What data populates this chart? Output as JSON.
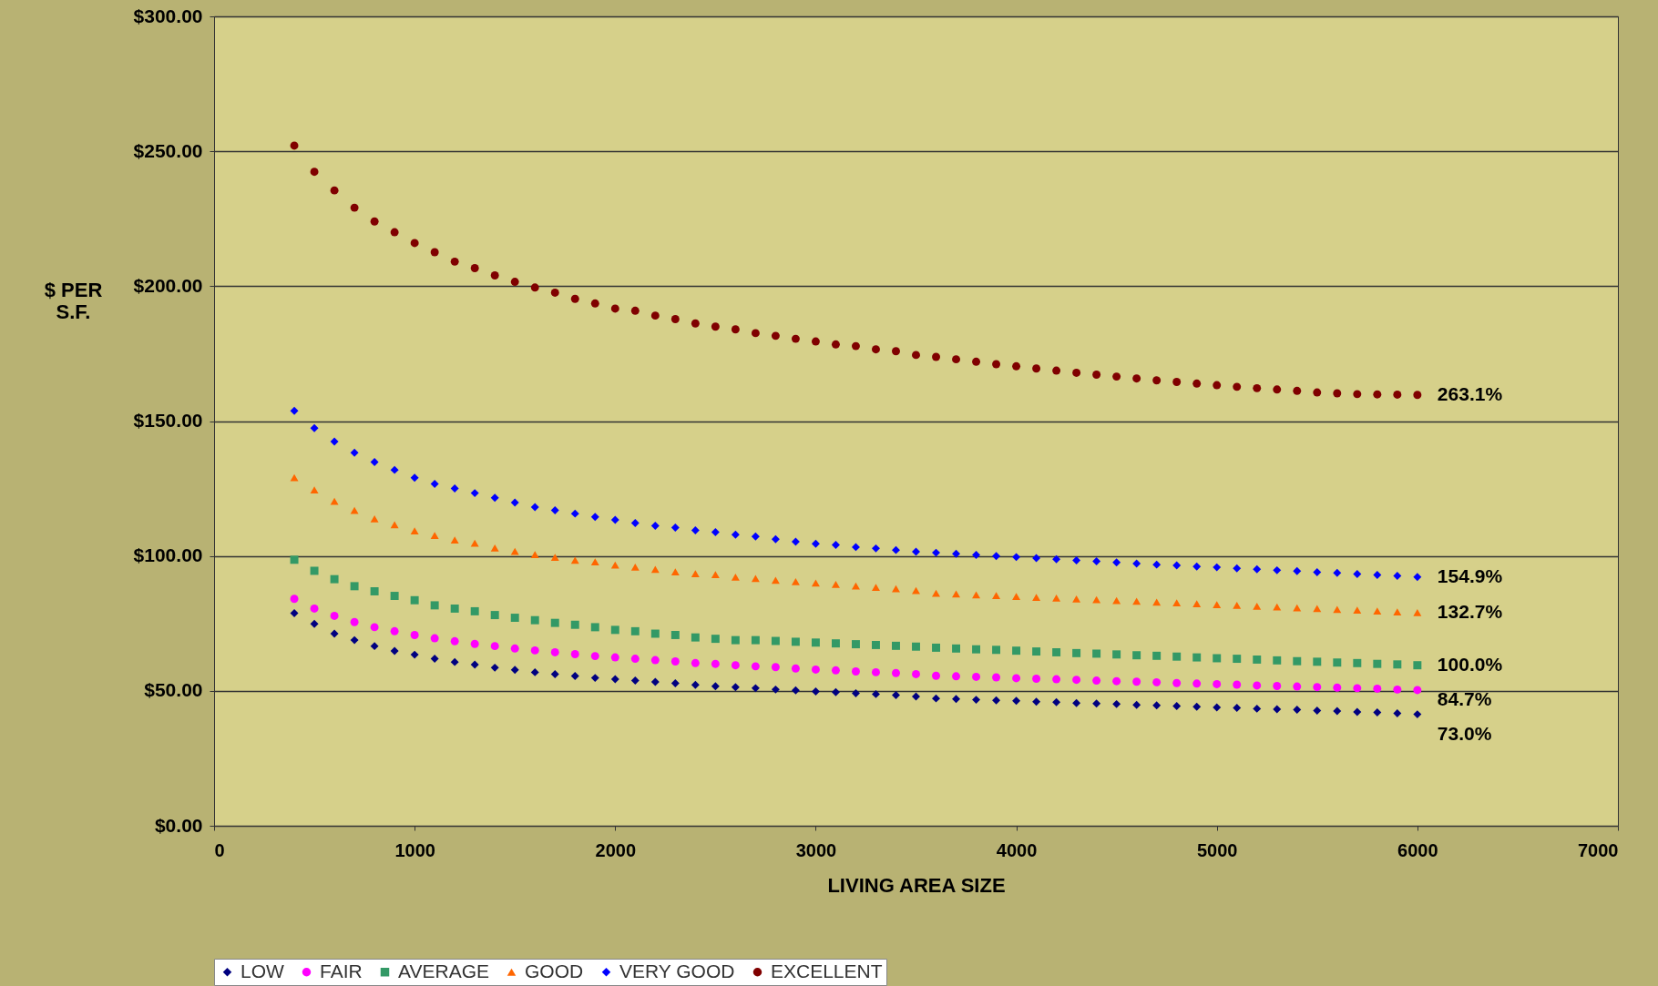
{
  "chart_data": {
    "type": "scatter",
    "xlabel": "LIVING AREA SIZE",
    "ylabel": "$ PER S.F.",
    "x": [
      400,
      500,
      600,
      700,
      800,
      900,
      1000,
      1100,
      1200,
      1300,
      1400,
      1500,
      1600,
      1700,
      1800,
      1900,
      2000,
      2100,
      2200,
      2300,
      2400,
      2500,
      2600,
      2700,
      2800,
      2900,
      3000,
      3100,
      3200,
      3300,
      3400,
      3500,
      3600,
      3700,
      3800,
      3900,
      4000,
      4100,
      4200,
      4300,
      4400,
      4500,
      4600,
      4700,
      4800,
      4900,
      5000,
      5100,
      5200,
      5300,
      5400,
      5500,
      5600,
      5700,
      5800,
      5900,
      6000
    ],
    "series": [
      {
        "name": "LOW",
        "color": "#000080",
        "marker": "diamond",
        "values": [
          78.8,
          74.8,
          71.2,
          68.8,
          66.6,
          64.8,
          63.4,
          61.9,
          60.7,
          59.7,
          58.6,
          57.8,
          56.9,
          56.2,
          55.5,
          54.8,
          54.3,
          53.8,
          53.3,
          52.8,
          52.2,
          51.7,
          51.4,
          51.0,
          50.5,
          50.2,
          49.8,
          49.5,
          49.1,
          48.8,
          48.4,
          47.9,
          47.2,
          47.0,
          46.7,
          46.5,
          46.3,
          46.0,
          45.8,
          45.5,
          45.3,
          45.1,
          44.8,
          44.6,
          44.4,
          44.1,
          43.9,
          43.7,
          43.4,
          43.2,
          43.0,
          42.7,
          42.5,
          42.2,
          42.0,
          41.7,
          41.3
        ]
      },
      {
        "name": "FAIR",
        "color": "#ff00ff",
        "marker": "circle",
        "values": [
          84.1,
          80.5,
          77.8,
          75.5,
          73.6,
          72.1,
          70.7,
          69.5,
          68.4,
          67.4,
          66.6,
          65.7,
          65.0,
          64.3,
          63.6,
          62.9,
          62.4,
          61.9,
          61.4,
          60.9,
          60.3,
          60.0,
          59.5,
          59.1,
          58.8,
          58.3,
          57.9,
          57.6,
          57.2,
          56.9,
          56.6,
          56.2,
          55.6,
          55.4,
          55.2,
          55.0,
          54.7,
          54.5,
          54.3,
          54.1,
          53.8,
          53.6,
          53.4,
          53.2,
          52.9,
          52.7,
          52.5,
          52.3,
          52.0,
          51.8,
          51.6,
          51.4,
          51.2,
          51.0,
          50.8,
          50.5,
          50.3
        ]
      },
      {
        "name": "AVERAGE",
        "color": "#339966",
        "marker": "square",
        "values": [
          98.6,
          94.5,
          91.4,
          88.8,
          86.9,
          85.2,
          83.6,
          81.7,
          80.5,
          79.5,
          78.1,
          77.1,
          76.2,
          75.2,
          74.5,
          73.6,
          72.6,
          72.1,
          71.2,
          70.7,
          69.8,
          69.3,
          68.8,
          68.8,
          68.5,
          68.2,
          67.9,
          67.6,
          67.3,
          67.0,
          66.7,
          66.4,
          66.0,
          65.7,
          65.4,
          65.2,
          64.9,
          64.6,
          64.3,
          64.0,
          63.8,
          63.5,
          63.2,
          63.0,
          62.7,
          62.4,
          62.1,
          61.9,
          61.6,
          61.3,
          61.0,
          60.8,
          60.5,
          60.3,
          60.0,
          59.8,
          59.5
        ]
      },
      {
        "name": "GOOD",
        "color": "#ff6600",
        "marker": "triangle",
        "values": [
          129.0,
          124.5,
          120.3,
          116.9,
          113.8,
          111.6,
          109.3,
          107.6,
          105.9,
          104.7,
          103.0,
          101.7,
          100.5,
          99.5,
          98.4,
          97.8,
          96.6,
          95.9,
          95.0,
          94.1,
          93.4,
          93.1,
          92.2,
          91.7,
          91.0,
          90.5,
          90.0,
          89.5,
          88.9,
          88.4,
          87.9,
          87.2,
          86.2,
          85.9,
          85.6,
          85.3,
          85.0,
          84.7,
          84.4,
          84.1,
          83.8,
          83.5,
          83.2,
          82.9,
          82.6,
          82.3,
          82.0,
          81.7,
          81.4,
          81.1,
          80.8,
          80.5,
          80.2,
          79.9,
          79.6,
          79.3,
          79.0
        ]
      },
      {
        "name": "VERY GOOD",
        "color": "#0000ff",
        "marker": "diamond",
        "values": [
          153.8,
          147.4,
          142.4,
          138.3,
          134.8,
          131.9,
          129.0,
          126.7,
          125.0,
          123.3,
          121.6,
          119.8,
          118.1,
          116.9,
          115.7,
          114.5,
          113.4,
          112.2,
          111.2,
          110.5,
          109.5,
          108.8,
          107.9,
          107.2,
          106.2,
          105.3,
          104.5,
          104.1,
          103.3,
          102.8,
          102.2,
          101.6,
          101.2,
          100.8,
          100.4,
          100.0,
          99.6,
          99.2,
          98.8,
          98.4,
          98.0,
          97.6,
          97.2,
          96.8,
          96.5,
          96.1,
          95.8,
          95.4,
          95.1,
          94.7,
          94.4,
          94.0,
          93.7,
          93.3,
          93.0,
          92.6,
          92.2
        ]
      },
      {
        "name": "EXCELLENT",
        "color": "#800000",
        "marker": "circle",
        "values": [
          252.1,
          242.4,
          235.5,
          229.1,
          224.0,
          220.0,
          216.0,
          212.6,
          209.1,
          206.7,
          204.0,
          201.6,
          199.5,
          197.6,
          195.3,
          193.6,
          191.7,
          190.9,
          189.1,
          187.8,
          186.2,
          185.0,
          184.0,
          182.6,
          181.6,
          180.5,
          179.5,
          178.4,
          177.8,
          176.6,
          175.9,
          174.5,
          173.8,
          172.9,
          172.0,
          171.1,
          170.3,
          169.5,
          168.7,
          167.9,
          167.2,
          166.5,
          165.8,
          165.1,
          164.5,
          163.9,
          163.3,
          162.7,
          162.2,
          161.7,
          161.2,
          160.6,
          160.3,
          160.0,
          159.9,
          159.8,
          159.7
        ]
      }
    ],
    "xlim": [
      0,
      7000
    ],
    "xticks": [
      0,
      1000,
      2000,
      3000,
      4000,
      5000,
      6000,
      7000
    ],
    "ylim": [
      0,
      300
    ],
    "yticks": [
      {
        "value": 0,
        "label": "$0.00"
      },
      {
        "value": 50,
        "label": "$50.00"
      },
      {
        "value": 100,
        "label": "$100.00"
      },
      {
        "value": 150,
        "label": "$150.00"
      },
      {
        "value": 200,
        "label": "$200.00"
      },
      {
        "value": 250,
        "label": "$250.00"
      },
      {
        "value": 300,
        "label": "$300.00"
      }
    ],
    "grid": "y",
    "legend": "bottom",
    "annotations": [
      "263.1%",
      "154.9%",
      "132.7%",
      "100.0%",
      "84.7%",
      "73.0%"
    ]
  }
}
